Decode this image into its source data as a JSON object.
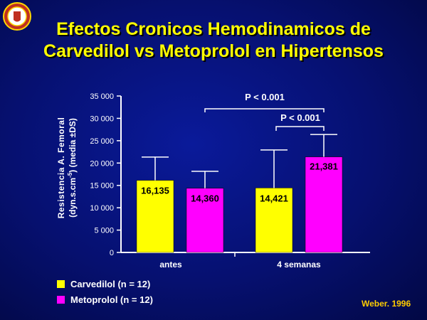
{
  "slide": {
    "title_line1": "Efectos Cronicos Hemodinamicos de",
    "title_line2": "Carvedilol vs Metoprolol en Hipertensos",
    "citation": "Weber. 1996"
  },
  "colors": {
    "carvedilol": "#ffff00",
    "metoprolol": "#ff00ff",
    "text": "#ffffff",
    "title": "#ffff00"
  },
  "chart_data": {
    "type": "bar",
    "title": "",
    "ylabel_line1": "Resistencia A. Femoral",
    "ylabel_line2": "(dyn.s.cm",
    "ylabel_sup": "-5",
    "ylabel_line2_end": ") (media ±DS)",
    "ylim": [
      0,
      35000
    ],
    "yticks": [
      0,
      5000,
      10000,
      15000,
      20000,
      25000,
      30000,
      35000
    ],
    "ytick_labels": [
      "0",
      "5 000",
      "10 000",
      "15 000",
      "20 000",
      "25 000",
      "30 000",
      "35 000"
    ],
    "categories": [
      "antes",
      "4 semanas"
    ],
    "series": [
      {
        "name": "Carvedilol (n = 12)",
        "values": [
          16135,
          14421
        ],
        "errors": [
          5200,
          8500
        ],
        "labels": [
          "16,135",
          "14,421"
        ]
      },
      {
        "name": "Metoprolol (n = 12)",
        "values": [
          14360,
          21381
        ],
        "errors": [
          3800,
          5000
        ],
        "labels": [
          "14,360",
          "21,381"
        ]
      }
    ],
    "annotations": [
      {
        "text": "P < 0.001",
        "from": [
          0,
          1
        ],
        "to": [
          1,
          1
        ]
      },
      {
        "text": "P < 0.001",
        "from": [
          1,
          0
        ],
        "to": [
          1,
          1
        ]
      }
    ],
    "grid": false,
    "legend_position": "bottom-left"
  }
}
